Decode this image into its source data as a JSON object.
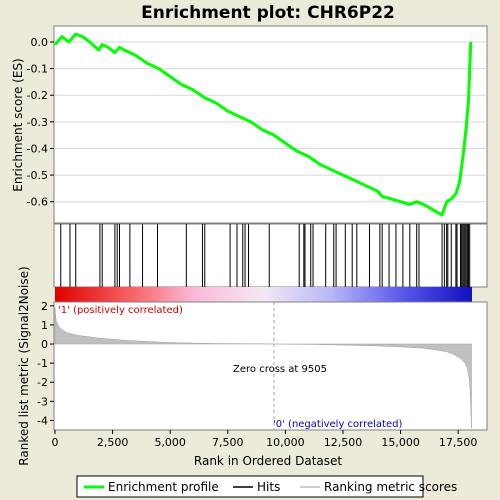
{
  "chart_data": {
    "type": "line",
    "title": "Enrichment plot: CHR6P22",
    "panels": {
      "enrichment": {
        "ylabel": "Enrichment score (ES)",
        "ylim": [
          -0.68,
          0.06
        ],
        "yticks": [
          0.0,
          -0.1,
          -0.2,
          -0.3,
          -0.4,
          -0.5,
          -0.6
        ],
        "ytick_labels": [
          "0.0",
          "-0.1",
          "-0.2",
          "-0.3",
          "-0.4",
          "-0.5",
          "-0.6"
        ],
        "series_color": "#00ff00",
        "x": [
          0,
          300,
          600,
          900,
          1200,
          1500,
          1900,
          2050,
          2300,
          2600,
          2800,
          3000,
          3500,
          4000,
          4500,
          5000,
          5500,
          6000,
          6500,
          7000,
          7500,
          8000,
          8500,
          9000,
          9500,
          10000,
          10500,
          11000,
          11500,
          12000,
          12500,
          13000,
          13500,
          14000,
          14200,
          14600,
          15000,
          15400,
          15700,
          16000,
          16400,
          16800,
          17000,
          17200,
          17400,
          17550,
          17650,
          17750,
          17850,
          17950,
          18000,
          18050
        ],
        "y": [
          -0.01,
          0.02,
          0.0,
          0.03,
          0.02,
          0.0,
          -0.03,
          -0.01,
          -0.02,
          -0.04,
          -0.02,
          -0.03,
          -0.05,
          -0.08,
          -0.1,
          -0.13,
          -0.16,
          -0.18,
          -0.21,
          -0.23,
          -0.26,
          -0.28,
          -0.3,
          -0.33,
          -0.35,
          -0.38,
          -0.41,
          -0.43,
          -0.46,
          -0.48,
          -0.5,
          -0.52,
          -0.54,
          -0.56,
          -0.58,
          -0.59,
          -0.6,
          -0.61,
          -0.6,
          -0.61,
          -0.63,
          -0.65,
          -0.6,
          -0.59,
          -0.57,
          -0.53,
          -0.47,
          -0.4,
          -0.32,
          -0.22,
          -0.1,
          0.0
        ]
      },
      "hits": {
        "positions": [
          250,
          650,
          900,
          1950,
          2050,
          2600,
          2700,
          2800,
          3250,
          3800,
          4450,
          5700,
          6400,
          6500,
          7600,
          7900,
          8150,
          8250,
          8400,
          9300,
          10600,
          10800,
          10850,
          11100,
          11200,
          11750,
          12100,
          12200,
          12600,
          12900,
          13100,
          13650,
          14100,
          14200,
          14500,
          14800,
          15100,
          15400,
          15700,
          15800,
          16800,
          16900,
          17000,
          17050,
          17200,
          17400,
          17450,
          17600,
          17650,
          17700,
          17750,
          17800,
          17850,
          17900,
          17950,
          18000
        ]
      },
      "ranking": {
        "ylabel": "Ranked list metric (Signal2Noise)",
        "xlabel": "Rank in Ordered Dataset",
        "ylim": [
          -4.5,
          2.2
        ],
        "yticks": [
          2,
          1,
          0,
          -1,
          -2,
          -3,
          -4
        ],
        "ytick_labels": [
          "2",
          "1",
          "0",
          "-1",
          "-2",
          "-3",
          "-4"
        ],
        "xlim": [
          0,
          18100
        ],
        "xticks": [
          0,
          2500,
          5000,
          7500,
          10000,
          12500,
          15000,
          17500
        ],
        "xtick_labels": [
          "0",
          "2,500",
          "5,000",
          "7,500",
          "10,000",
          "12,500",
          "15,000",
          "17,500"
        ],
        "x": [
          0,
          50,
          200,
          500,
          1000,
          2000,
          3000,
          4000,
          5000,
          6000,
          7000,
          8000,
          9000,
          9505,
          10000,
          11000,
          12000,
          13000,
          14000,
          15000,
          16000,
          16500,
          17000,
          17300,
          17600,
          17800,
          17900,
          17980,
          18020,
          18050,
          18080
        ],
        "y": [
          1.9,
          1.2,
          0.85,
          0.6,
          0.45,
          0.3,
          0.2,
          0.13,
          0.08,
          0.05,
          0.03,
          0.02,
          0.01,
          0.0,
          -0.01,
          -0.02,
          -0.04,
          -0.07,
          -0.1,
          -0.15,
          -0.22,
          -0.3,
          -0.4,
          -0.55,
          -0.75,
          -1.0,
          -1.3,
          -1.8,
          -2.5,
          -3.5,
          -4.4
        ],
        "annotations": {
          "positive": "'1' (positively correlated)",
          "negative": "'0' (negatively correlated)",
          "zero_cross": "Zero cross at 9505"
        },
        "zero_cross": 9505
      }
    },
    "legend": {
      "placement": "bottom",
      "entries": [
        {
          "label": "Enrichment profile",
          "color": "#00ff00"
        },
        {
          "label": "Hits",
          "color": "#000000"
        },
        {
          "label": "Ranking metric scores",
          "color": "#c0c0c0"
        }
      ]
    }
  }
}
